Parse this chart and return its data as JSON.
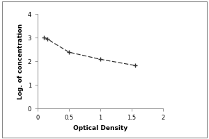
{
  "x_data": [
    0.1,
    0.15,
    0.3,
    0.5,
    1.0,
    1.55
  ],
  "y_data": [
    3.0,
    2.95,
    2.7,
    2.38,
    2.08,
    1.82
  ],
  "marker_x": [
    0.1,
    0.15,
    0.5,
    1.0,
    1.55
  ],
  "marker_y": [
    3.0,
    2.95,
    2.38,
    2.08,
    1.82
  ],
  "xlabel": "Optical Density",
  "ylabel": "Log. of concentration",
  "xlim": [
    0,
    2
  ],
  "ylim": [
    0,
    4
  ],
  "xticks": [
    0,
    0.5,
    1,
    1.5,
    2
  ],
  "xtick_labels": [
    "0",
    "0.5",
    "1",
    "1.5",
    "2"
  ],
  "yticks": [
    0,
    1,
    2,
    3,
    4
  ],
  "ytick_labels": [
    "0",
    "1",
    "2",
    "3",
    "4"
  ],
  "line_color": "#333333",
  "marker_color": "#333333",
  "background_color": "#ffffff",
  "outer_bg": "#f0f0f0",
  "font_size_label": 6.5,
  "font_size_tick": 6,
  "spine_color": "#888888"
}
